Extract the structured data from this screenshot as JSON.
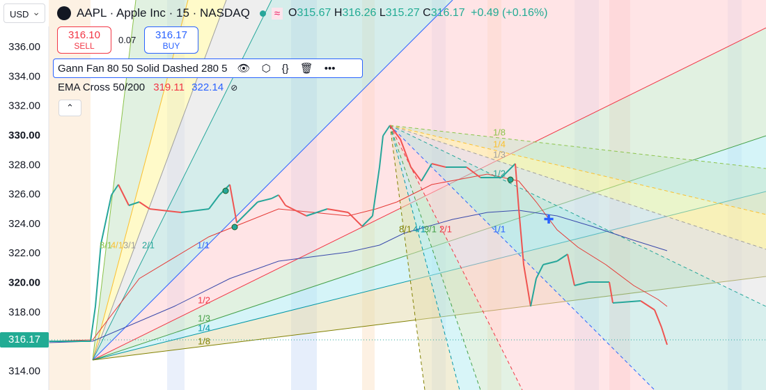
{
  "header": {
    "currency": "USD",
    "title": "AAPL · Apple Inc · 15 · NASDAQ",
    "ohlc": {
      "open_label": "O",
      "open": "315.67",
      "high_label": "H",
      "high": "316.26",
      "low_label": "L",
      "low": "315.27",
      "close_label": "C",
      "close": "316.17",
      "change": "+0.49 (+0.16%)"
    }
  },
  "trade": {
    "sell_price": "316.10",
    "sell_label": "SELL",
    "spread": "0.07",
    "buy_price": "316.17",
    "buy_label": "BUY"
  },
  "indicators": [
    {
      "name": "Gann Fan 80 50 Solid Dashed 280 5"
    },
    {
      "name": "EMA Cross 50/200",
      "values": [
        "319.11",
        "322.14"
      ]
    }
  ],
  "price_axis": {
    "labels": [
      "336.00",
      "334.00",
      "332.00",
      "330.00",
      "328.00",
      "326.00",
      "324.00",
      "322.00",
      "320.00",
      "318.00",
      "314.00"
    ],
    "current": "316.17"
  },
  "fan_labels": {
    "up": [
      "8/1",
      "4/1",
      "3/1",
      "2/1",
      "1/1",
      "1/2",
      "1/3",
      "1/4",
      "1/8"
    ],
    "down": [
      "8/1",
      "4/1",
      "3/1",
      "2/1",
      "1/1",
      "1/2",
      "1/3",
      "1/4",
      "1/8"
    ]
  }
}
